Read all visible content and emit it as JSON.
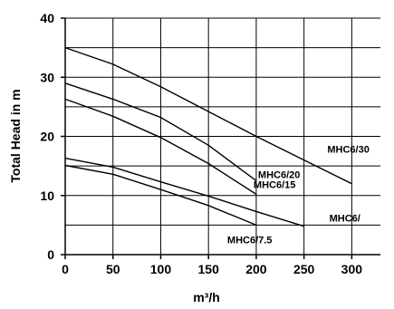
{
  "chart_data": {
    "type": "line",
    "title": "",
    "xlabel": "m³/h",
    "ylabel": "Total Head in m",
    "xlim": [
      0,
      330
    ],
    "ylim": [
      0,
      40
    ],
    "x_ticks": [
      0,
      50,
      100,
      150,
      200,
      250,
      300
    ],
    "y_ticks": [
      0,
      10,
      20,
      30,
      40
    ],
    "grid": "horizontal and vertical",
    "series": [
      {
        "name": "MHC6/30",
        "points": [
          [
            0,
            35
          ],
          [
            50,
            32.2
          ],
          [
            100,
            28.4
          ],
          [
            150,
            24.2
          ],
          [
            200,
            20
          ],
          [
            250,
            16
          ],
          [
            300,
            12
          ]
        ]
      },
      {
        "name": "MHC6/20",
        "points": [
          [
            0,
            29
          ],
          [
            50,
            26.3
          ],
          [
            100,
            23.2
          ],
          [
            150,
            18.5
          ],
          [
            200,
            12.5
          ]
        ]
      },
      {
        "name": "MHC6/15",
        "points": [
          [
            0,
            26.3
          ],
          [
            50,
            23.4
          ],
          [
            100,
            19.8
          ],
          [
            150,
            15.4
          ],
          [
            200,
            10.2
          ]
        ]
      },
      {
        "name": "MHC6/",
        "points": [
          [
            0,
            16.3
          ],
          [
            50,
            14.8
          ],
          [
            100,
            12.3
          ],
          [
            150,
            9.9
          ],
          [
            200,
            7.3
          ],
          [
            250,
            4.8
          ]
        ]
      },
      {
        "name": "MHC6/7.5",
        "points": [
          [
            0,
            15.1
          ],
          [
            50,
            13.6
          ],
          [
            100,
            11
          ],
          [
            150,
            8.3
          ],
          [
            200,
            5
          ]
        ]
      }
    ]
  }
}
